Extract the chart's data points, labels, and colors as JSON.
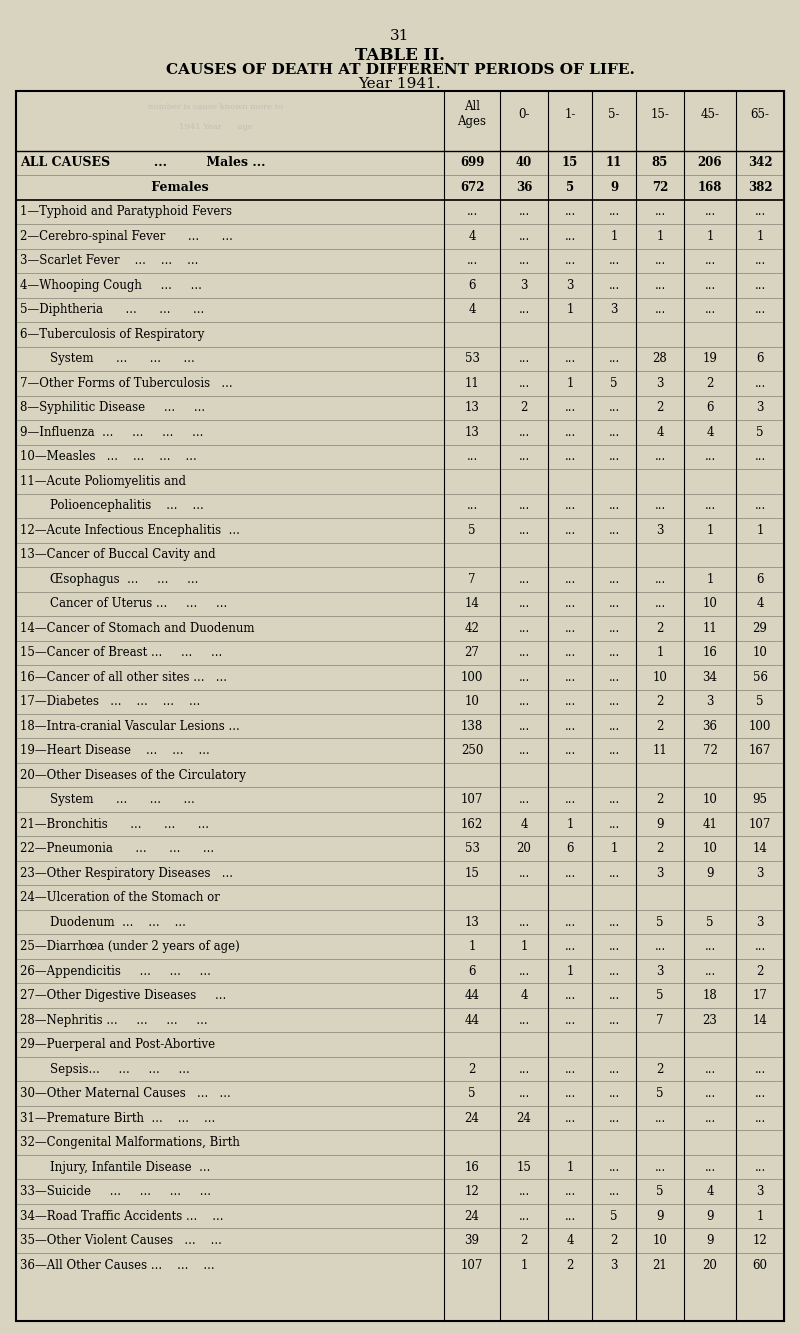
{
  "page_number": "31",
  "title1": "TABLE II.",
  "title2": "CAUSES OF DEATH AT DIFFERENT PERIODS OF LIFE.",
  "title3": "Year 1941.",
  "bg_color": "#d8d4c0",
  "table_bg": "#d8d4c0",
  "columns": [
    "All\nAges",
    "0-",
    "1-",
    "5-",
    "15-",
    "45-",
    "65-"
  ],
  "rows": [
    {
      "label": "ALL CAUSES          ...         Males ...",
      "bold": true,
      "indent": 0,
      "values": [
        "699",
        "40",
        "15",
        "11",
        "85",
        "206",
        "342"
      ]
    },
    {
      "label": "                              Females",
      "bold": true,
      "indent": 0,
      "values": [
        "672",
        "36",
        "5",
        "9",
        "72",
        "168",
        "382"
      ]
    },
    {
      "label": "1—Typhoid and Paratyphoid Fevers",
      "bold": false,
      "indent": 0,
      "values": [
        "...",
        "...",
        "...",
        "...",
        "...",
        "...",
        "..."
      ]
    },
    {
      "label": "2—Cerebro-spinal Fever      ...      ...",
      "bold": false,
      "indent": 0,
      "values": [
        "4",
        "...",
        "...",
        "1",
        "1",
        "1",
        "1"
      ]
    },
    {
      "label": "3—Scarlet Fever    ...    ...    ...",
      "bold": false,
      "indent": 0,
      "values": [
        "...",
        "...",
        "...",
        "...",
        "...",
        "...",
        "..."
      ]
    },
    {
      "label": "4—Whooping Cough     ...     ...",
      "bold": false,
      "indent": 0,
      "values": [
        "6",
        "3",
        "3",
        "...",
        "...",
        "...",
        "..."
      ]
    },
    {
      "label": "5—Diphtheria      ...      ...      ...",
      "bold": false,
      "indent": 0,
      "values": [
        "4",
        "...",
        "1",
        "3",
        "...",
        "...",
        "..."
      ]
    },
    {
      "label": "6—Tuberculosis of Respiratory",
      "bold": false,
      "indent": 0,
      "values": [
        "",
        "",
        "",
        "",
        "",
        "",
        ""
      ]
    },
    {
      "label": "        System      ...      ...      ...",
      "bold": false,
      "indent": 1,
      "values": [
        "53",
        "...",
        "...",
        "...",
        "28",
        "19",
        "6"
      ]
    },
    {
      "label": "7—Other Forms of Tuberculosis   ...",
      "bold": false,
      "indent": 0,
      "values": [
        "11",
        "...",
        "1",
        "5",
        "3",
        "2",
        "..."
      ]
    },
    {
      "label": "8—Syphilitic Disease     ...     ...",
      "bold": false,
      "indent": 0,
      "values": [
        "13",
        "2",
        "...",
        "...",
        "2",
        "6",
        "3"
      ]
    },
    {
      "label": "9—Influenza  ...     ...     ...     ...",
      "bold": false,
      "indent": 0,
      "values": [
        "13",
        "...",
        "...",
        "...",
        "4",
        "4",
        "5"
      ]
    },
    {
      "label": "10—Measles   ...    ...    ...    ...",
      "bold": false,
      "indent": 0,
      "values": [
        "...",
        "...",
        "...",
        "...",
        "...",
        "...",
        "..."
      ]
    },
    {
      "label": "11—Acute Poliomyelitis and",
      "bold": false,
      "indent": 0,
      "values": [
        "",
        "",
        "",
        "",
        "",
        "",
        ""
      ]
    },
    {
      "label": "        Polioencephalitis    ...    ...",
      "bold": false,
      "indent": 1,
      "values": [
        "...",
        "...",
        "...",
        "...",
        "...",
        "...",
        "..."
      ]
    },
    {
      "label": "12—Acute Infectious Encephalitis  ...",
      "bold": false,
      "indent": 0,
      "values": [
        "5",
        "...",
        "...",
        "...",
        "3",
        "1",
        "1"
      ]
    },
    {
      "label": "13—Cancer of Buccal Cavity and",
      "bold": false,
      "indent": 0,
      "values": [
        "",
        "",
        "",
        "",
        "",
        "",
        ""
      ]
    },
    {
      "label": "        Œsophagus  ...     ...     ...",
      "bold": false,
      "indent": 1,
      "values": [
        "7",
        "...",
        "...",
        "...",
        "...",
        "1",
        "6"
      ]
    },
    {
      "label": "        Cancer of Uterus ...     ...     ...",
      "bold": false,
      "indent": 1,
      "values": [
        "14",
        "...",
        "...",
        "...",
        "...",
        "10",
        "4"
      ]
    },
    {
      "label": "14—Cancer of Stomach and Duodenum",
      "bold": false,
      "indent": 0,
      "values": [
        "42",
        "...",
        "...",
        "...",
        "2",
        "11",
        "29"
      ]
    },
    {
      "label": "15—Cancer of Breast ...     ...     ...",
      "bold": false,
      "indent": 0,
      "values": [
        "27",
        "...",
        "...",
        "...",
        "1",
        "16",
        "10"
      ]
    },
    {
      "label": "16—Cancer of all other sites ...   ...",
      "bold": false,
      "indent": 0,
      "values": [
        "100",
        "...",
        "...",
        "...",
        "10",
        "34",
        "56"
      ]
    },
    {
      "label": "17—Diabetes   ...    ...    ...    ...",
      "bold": false,
      "indent": 0,
      "values": [
        "10",
        "...",
        "...",
        "...",
        "2",
        "3",
        "5"
      ]
    },
    {
      "label": "18—Intra-cranial Vascular Lesions ...",
      "bold": false,
      "indent": 0,
      "values": [
        "138",
        "...",
        "...",
        "...",
        "2",
        "36",
        "100"
      ]
    },
    {
      "label": "19—Heart Disease    ...    ...    ...",
      "bold": false,
      "indent": 0,
      "values": [
        "250",
        "...",
        "...",
        "...",
        "11",
        "72",
        "167"
      ]
    },
    {
      "label": "20—Other Diseases of the Circulatory",
      "bold": false,
      "indent": 0,
      "values": [
        "",
        "",
        "",
        "",
        "",
        "",
        ""
      ]
    },
    {
      "label": "        System      ...      ...      ...",
      "bold": false,
      "indent": 1,
      "values": [
        "107",
        "...",
        "...",
        "...",
        "2",
        "10",
        "95"
      ]
    },
    {
      "label": "21—Bronchitis      ...      ...      ...",
      "bold": false,
      "indent": 0,
      "values": [
        "162",
        "4",
        "1",
        "...",
        "9",
        "41",
        "107"
      ]
    },
    {
      "label": "22—Pneumonia      ...      ...      ...",
      "bold": false,
      "indent": 0,
      "values": [
        "53",
        "20",
        "6",
        "1",
        "2",
        "10",
        "14"
      ]
    },
    {
      "label": "23—Other Respiratory Diseases   ...",
      "bold": false,
      "indent": 0,
      "values": [
        "15",
        "...",
        "...",
        "...",
        "3",
        "9",
        "3"
      ]
    },
    {
      "label": "24—Ulceration of the Stomach or",
      "bold": false,
      "indent": 0,
      "values": [
        "",
        "",
        "",
        "",
        "",
        "",
        ""
      ]
    },
    {
      "label": "        Duodenum  ...    ...    ...",
      "bold": false,
      "indent": 1,
      "values": [
        "13",
        "...",
        "...",
        "...",
        "5",
        "5",
        "3"
      ]
    },
    {
      "label": "25—Diarrhœa (under 2 years of age)",
      "bold": false,
      "indent": 0,
      "values": [
        "1",
        "1",
        "...",
        "...",
        "...",
        "...",
        "..."
      ]
    },
    {
      "label": "26—Appendicitis     ...     ...     ...",
      "bold": false,
      "indent": 0,
      "values": [
        "6",
        "...",
        "1",
        "...",
        "3",
        "...",
        "2"
      ]
    },
    {
      "label": "27—Other Digestive Diseases     ...",
      "bold": false,
      "indent": 0,
      "values": [
        "44",
        "4",
        "...",
        "...",
        "5",
        "18",
        "17"
      ]
    },
    {
      "label": "28—Nephritis ...     ...     ...     ...",
      "bold": false,
      "indent": 0,
      "values": [
        "44",
        "...",
        "...",
        "...",
        "7",
        "23",
        "14"
      ]
    },
    {
      "label": "29—Puerperal and Post-Abortive",
      "bold": false,
      "indent": 0,
      "values": [
        "",
        "",
        "",
        "",
        "",
        "",
        ""
      ]
    },
    {
      "label": "        Sepsis...     ...     ...     ...",
      "bold": false,
      "indent": 1,
      "values": [
        "2",
        "...",
        "...",
        "...",
        "2",
        "...",
        "..."
      ]
    },
    {
      "label": "30—Other Maternal Causes   ...   ...",
      "bold": false,
      "indent": 0,
      "values": [
        "5",
        "...",
        "...",
        "...",
        "5",
        "...",
        "..."
      ]
    },
    {
      "label": "31—Premature Birth  ...    ...    ...",
      "bold": false,
      "indent": 0,
      "values": [
        "24",
        "24",
        "...",
        "...",
        "...",
        "...",
        "..."
      ]
    },
    {
      "label": "32—Congenital Malformations, Birth",
      "bold": false,
      "indent": 0,
      "values": [
        "",
        "",
        "",
        "",
        "",
        "",
        ""
      ]
    },
    {
      "label": "        Injury, Infantile Disease  ...",
      "bold": false,
      "indent": 1,
      "values": [
        "16",
        "15",
        "1",
        "...",
        "...",
        "...",
        "..."
      ]
    },
    {
      "label": "33—Suicide     ...     ...     ...     ...",
      "bold": false,
      "indent": 0,
      "values": [
        "12",
        "...",
        "...",
        "...",
        "5",
        "4",
        "3"
      ]
    },
    {
      "label": "34—Road Traffic Accidents ...    ...",
      "bold": false,
      "indent": 0,
      "values": [
        "24",
        "...",
        "...",
        "5",
        "9",
        "9",
        "1"
      ]
    },
    {
      "label": "35—Other Violent Causes   ...    ...",
      "bold": false,
      "indent": 0,
      "values": [
        "39",
        "2",
        "4",
        "2",
        "10",
        "9",
        "12"
      ]
    },
    {
      "label": "36—All Other Causes ...    ...    ...",
      "bold": false,
      "indent": 0,
      "values": [
        "107",
        "1",
        "2",
        "3",
        "21",
        "20",
        "60"
      ]
    }
  ]
}
